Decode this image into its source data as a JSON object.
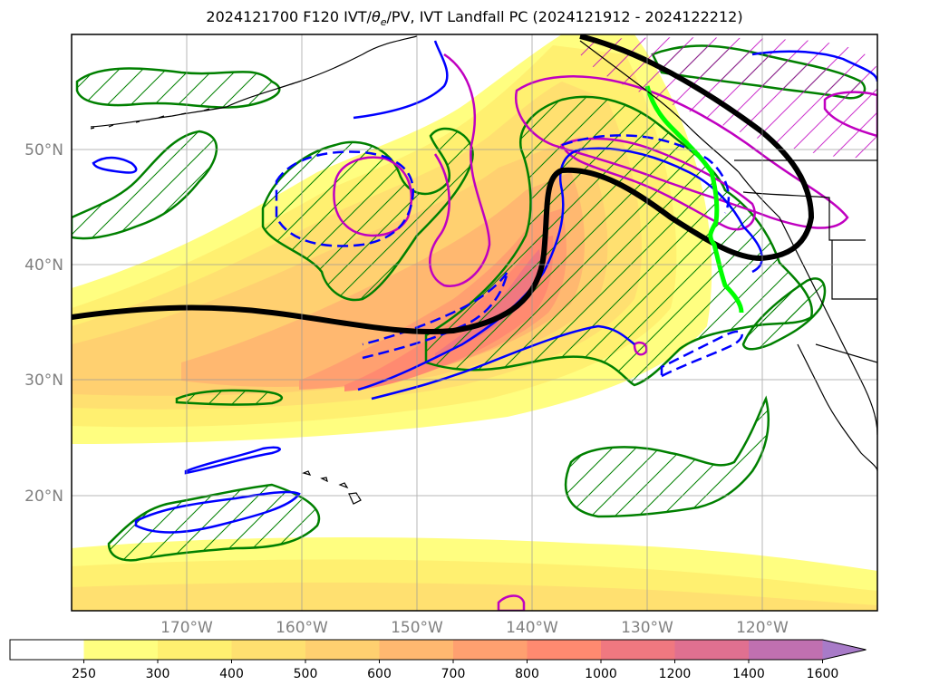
{
  "title": {
    "prefix": "2024121700 F120 IVT/",
    "theta": "θ",
    "sub": "e",
    "suffix": "/PV, IVT Landfall PC (2024121912 - 2024122212)"
  },
  "map": {
    "lat_labels": [
      "50°N",
      "40°N",
      "30°N",
      "20°N"
    ],
    "lon_labels": [
      "170°W",
      "160°W",
      "150°W",
      "140°W",
      "130°W",
      "120°W"
    ]
  },
  "colorbar": {
    "ticks": [
      "250",
      "300",
      "400",
      "500",
      "600",
      "700",
      "800",
      "1000",
      "1200",
      "1400",
      "1600"
    ],
    "colors": [
      "#ffffff",
      "#fffe80",
      "#fff070",
      "#ffe070",
      "#ffd070",
      "#ffb870",
      "#ffa070",
      "#ff8a70",
      "#f07880",
      "#e07090",
      "#c070b0",
      "#a87bc8"
    ]
  },
  "legend_colors": {
    "ivt_pc_line": "#000000",
    "landfall": "#00ff00",
    "theta_e": "#0000ff",
    "pv_high": "#c000c0",
    "hatch": "#008000"
  }
}
